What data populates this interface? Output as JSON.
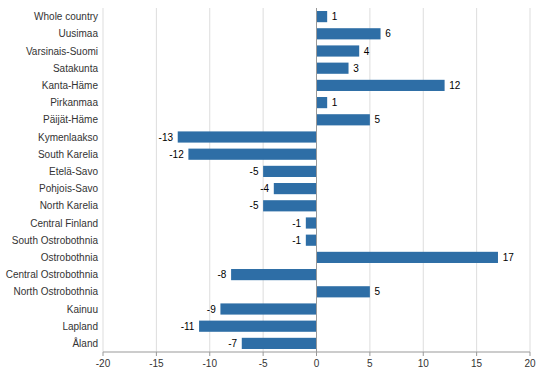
{
  "chart_data": {
    "type": "bar",
    "orientation": "horizontal",
    "categories": [
      "Whole country",
      "Uusimaa",
      "Varsinais-Suomi",
      "Satakunta",
      "Kanta-Häme",
      "Pirkanmaa",
      "Päijät-Häme",
      "Kymenlaakso",
      "South Karelia",
      "Etelä-Savo",
      "Pohjois-Savo",
      "North Karelia",
      "Central Finland",
      "South Ostrobothnia",
      "Ostrobothnia",
      "Central Ostrobothnia",
      "North Ostrobothnia",
      "Kainuu",
      "Lapland",
      "Åland"
    ],
    "values": [
      1,
      6,
      4,
      3,
      12,
      1,
      5,
      -13,
      -12,
      -5,
      -4,
      -5,
      -1,
      -1,
      17,
      -8,
      5,
      -9,
      -11,
      -7
    ],
    "color": "#2E6EA6",
    "xlim": [
      -20,
      20
    ],
    "xticks": [
      -20,
      -15,
      -10,
      -5,
      0,
      5,
      10,
      15,
      20
    ],
    "grid": true,
    "data_labels": true
  }
}
